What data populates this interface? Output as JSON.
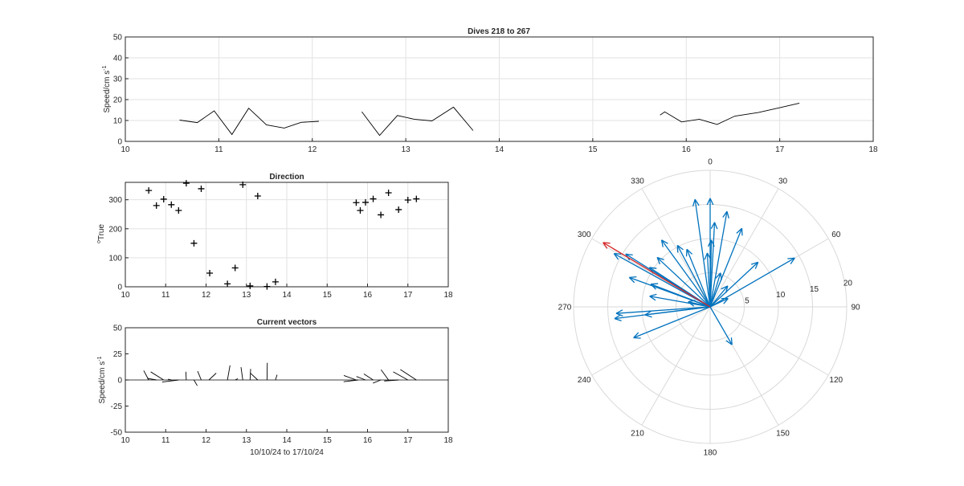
{
  "chart_data": [
    {
      "type": "line",
      "title": "Dives 218 to 267",
      "ylabel": "Speed/cm s",
      "ylabel_superscript": "-1",
      "xlim": [
        10,
        18
      ],
      "ylim": [
        0,
        50
      ],
      "xticks": [
        10,
        11,
        12,
        13,
        14,
        15,
        16,
        17,
        18
      ],
      "yticks": [
        0,
        10,
        20,
        30,
        40,
        50
      ],
      "grid": true,
      "series": [
        {
          "x": [
            10.58,
            10.77,
            10.95,
            11.14,
            11.32,
            11.51,
            11.7,
            11.88,
            12.07
          ],
          "y": [
            10.2,
            9.0,
            14.6,
            3.3,
            15.9,
            7.9,
            6.4,
            9.1,
            9.6
          ]
        },
        {
          "x": [
            12.53,
            12.72,
            12.91,
            13.09,
            13.28,
            13.51,
            13.72
          ],
          "y": [
            14.2,
            2.9,
            12.4,
            10.6,
            9.8,
            16.4,
            5.2
          ]
        },
        {
          "x": [
            15.72,
            15.77,
            15.95,
            16.14,
            16.33,
            16.52,
            16.77,
            17.0,
            17.21
          ],
          "y": [
            12.6,
            14.1,
            9.3,
            10.6,
            8.1,
            12.1,
            13.8,
            16.1,
            18.3
          ]
        }
      ],
      "color": "#000000"
    },
    {
      "type": "scatter",
      "title": "Direction",
      "ylabel": "True",
      "ylabel_superscript": "o",
      "xlim": [
        10,
        18
      ],
      "ylim": [
        0,
        360
      ],
      "xticks": [
        10,
        11,
        12,
        13,
        14,
        15,
        16,
        17,
        18
      ],
      "yticks": [
        0,
        100,
        200,
        300
      ],
      "grid": true,
      "marker": "+",
      "points": [
        [
          10.58,
          332
        ],
        [
          10.77,
          280
        ],
        [
          10.95,
          302
        ],
        [
          11.14,
          283
        ],
        [
          11.32,
          263
        ],
        [
          11.51,
          357
        ],
        [
          11.7,
          150
        ],
        [
          11.88,
          338
        ],
        [
          12.09,
          47
        ],
        [
          12.53,
          10
        ],
        [
          12.72,
          65
        ],
        [
          12.91,
          352
        ],
        [
          13.09,
          3
        ],
        [
          13.28,
          313
        ],
        [
          13.51,
          1
        ],
        [
          13.72,
          17
        ],
        [
          15.72,
          290
        ],
        [
          15.82,
          263
        ],
        [
          15.95,
          291
        ],
        [
          16.14,
          303
        ],
        [
          16.33,
          248
        ],
        [
          16.52,
          324
        ],
        [
          16.77,
          266
        ],
        [
          17.0,
          299
        ],
        [
          17.21,
          303
        ]
      ]
    },
    {
      "type": "line",
      "subtype": "stick_vectors",
      "title": "Current vectors",
      "ylabel": "Speed/cm s",
      "ylabel_superscript": "-1",
      "xlabel": "10/10/24 to 17/10/24",
      "xlim": [
        10,
        18
      ],
      "ylim": [
        -50,
        50
      ],
      "xticks": [
        10,
        11,
        12,
        13,
        14,
        15,
        16,
        17,
        18
      ],
      "yticks": [
        -50,
        -25,
        0,
        25,
        50
      ],
      "grid": false,
      "note_vectors": "each stick drawn from (time, 0) using speed and direction of the matching dive"
    },
    {
      "type": "scatter",
      "subtype": "compass",
      "angle_ticks": [
        0,
        30,
        60,
        90,
        120,
        150,
        180,
        210,
        240,
        270,
        300,
        330
      ],
      "radial_ticks": [
        5,
        10,
        15,
        20
      ],
      "rmax": 20,
      "vector_color": "#0072bd",
      "highlight_color": "#d62728",
      "vectors": [
        {
          "dir": 0,
          "speed": 15.9
        },
        {
          "dir": 3,
          "speed": 12.4
        },
        {
          "dir": 10,
          "speed": 14.2
        },
        {
          "dir": 1,
          "speed": 9.8
        },
        {
          "dir": 17,
          "speed": 5.2
        },
        {
          "dir": 352,
          "speed": 15.9
        },
        {
          "dir": 357,
          "speed": 7.9
        },
        {
          "dir": 338,
          "speed": 9.1
        },
        {
          "dir": 332,
          "speed": 10.2
        },
        {
          "dir": 313,
          "speed": 10.6
        },
        {
          "dir": 302,
          "speed": 14.6
        },
        {
          "dir": 303,
          "speed": 10.6
        },
        {
          "dir": 299,
          "speed": 16.1
        },
        {
          "dir": 290,
          "speed": 12.6
        },
        {
          "dir": 291,
          "speed": 9.3
        },
        {
          "dir": 283,
          "speed": 3.3
        },
        {
          "dir": 280,
          "speed": 9.0
        },
        {
          "dir": 263,
          "speed": 9.6
        },
        {
          "dir": 266,
          "speed": 13.8
        },
        {
          "dir": 263,
          "speed": 14.1
        },
        {
          "dir": 248,
          "speed": 12.1
        },
        {
          "dir": 324,
          "speed": 12.1
        },
        {
          "dir": 47,
          "speed": 9.6
        },
        {
          "dir": 65,
          "speed": 2.9
        },
        {
          "dir": 150,
          "speed": 6.4
        },
        {
          "dir": 22,
          "speed": 12.4
        },
        {
          "dir": 40,
          "speed": 4.0
        },
        {
          "dir": 60,
          "speed": 14.3
        }
      ],
      "highlight_vector": {
        "dir": 301,
        "speed": 18.3
      }
    }
  ]
}
